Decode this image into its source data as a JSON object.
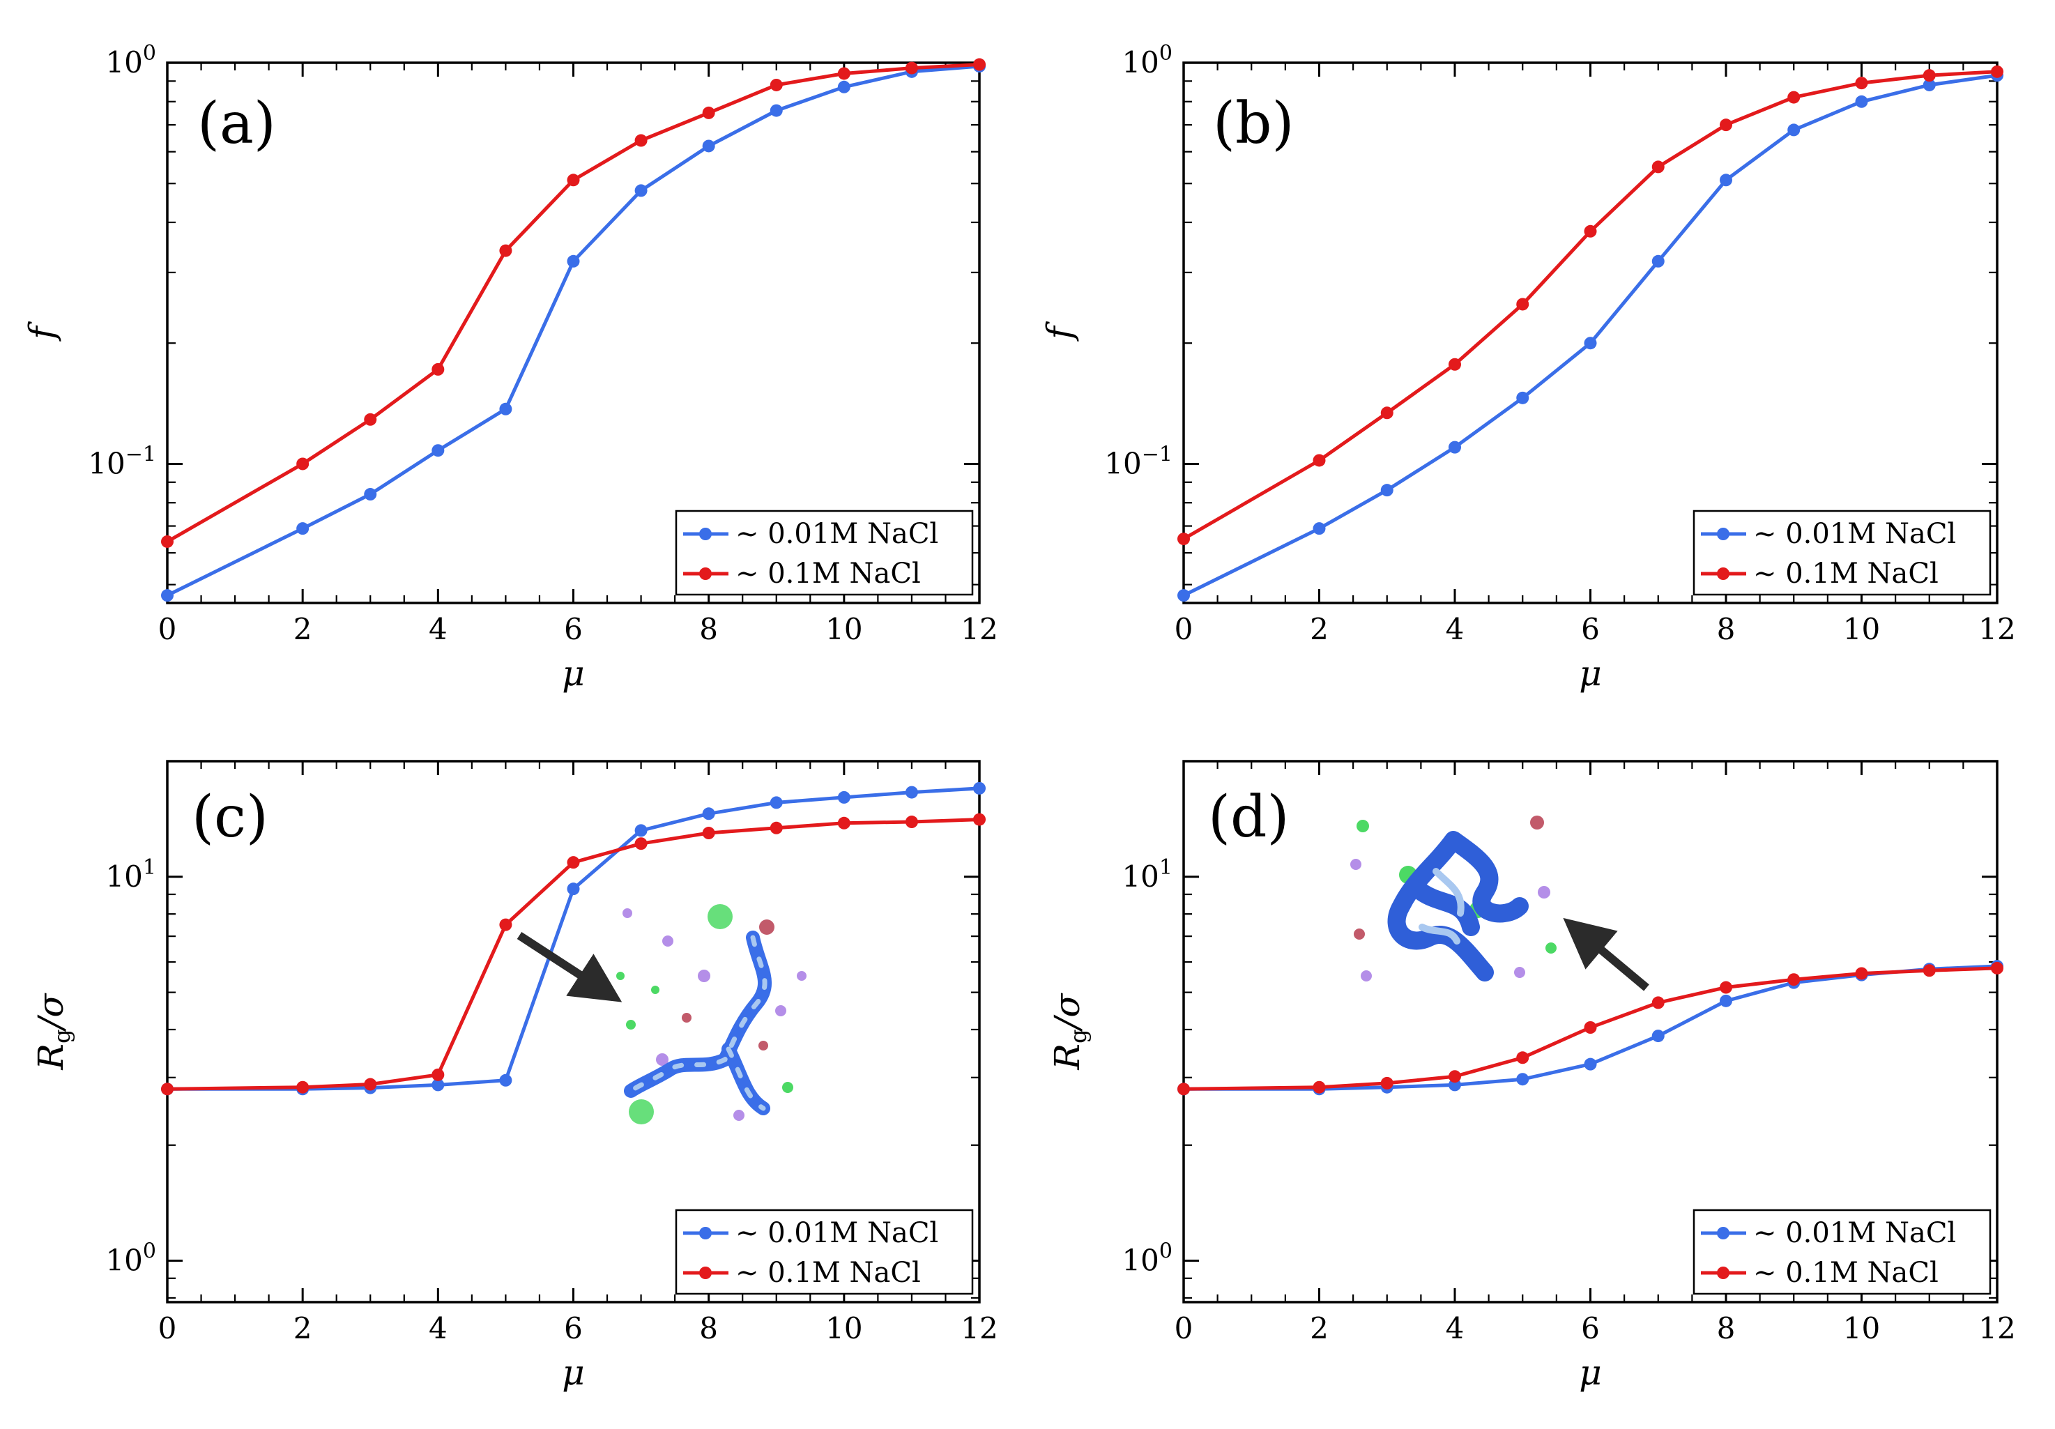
{
  "chart_data": [
    {
      "type": "line",
      "panel": "(a)",
      "xlabel": "μ",
      "ylabel": "f",
      "yscale": "log",
      "xlim": [
        0,
        12
      ],
      "ylim": [
        0.045,
        1.0
      ],
      "x_ticks": [
        "0",
        "2",
        "4",
        "6",
        "8",
        "10",
        "12"
      ],
      "y_ticks": [
        {
          "value": 0.1,
          "base": "10",
          "exp": "−1"
        },
        {
          "value": 1.0,
          "base": "10",
          "exp": "0"
        }
      ],
      "legend_position": "lower-right",
      "x": [
        0,
        2,
        3,
        4,
        5,
        6,
        7,
        8,
        9,
        10,
        11,
        12
      ],
      "series": [
        {
          "name": "∼ 0.01M NaCl",
          "color": "#3a6ee8",
          "values": [
            0.047,
            0.069,
            0.084,
            0.108,
            0.137,
            0.32,
            0.48,
            0.62,
            0.76,
            0.87,
            0.95,
            0.98
          ]
        },
        {
          "name": "∼  0.1M NaCl",
          "color": "#e31a1c",
          "values": [
            0.064,
            0.1,
            0.129,
            0.172,
            0.34,
            0.51,
            0.64,
            0.75,
            0.88,
            0.94,
            0.97,
            0.99
          ]
        }
      ]
    },
    {
      "type": "line",
      "panel": "(b)",
      "xlabel": "μ",
      "ylabel": "f",
      "yscale": "log",
      "xlim": [
        0,
        12
      ],
      "ylim": [
        0.045,
        1.0
      ],
      "x_ticks": [
        "0",
        "2",
        "4",
        "6",
        "8",
        "10",
        "12"
      ],
      "y_ticks": [
        {
          "value": 0.1,
          "base": "10",
          "exp": "−1"
        },
        {
          "value": 1.0,
          "base": "10",
          "exp": "0"
        }
      ],
      "legend_position": "lower-right",
      "x": [
        0,
        2,
        3,
        4,
        5,
        6,
        7,
        8,
        9,
        10,
        11,
        12
      ],
      "series": [
        {
          "name": "∼ 0.01M NaCl",
          "color": "#3a6ee8",
          "values": [
            0.047,
            0.069,
            0.086,
            0.11,
            0.146,
            0.2,
            0.32,
            0.51,
            0.68,
            0.8,
            0.88,
            0.93
          ]
        },
        {
          "name": "∼  0.1M NaCl",
          "color": "#e31a1c",
          "values": [
            0.065,
            0.102,
            0.134,
            0.177,
            0.25,
            0.38,
            0.55,
            0.7,
            0.82,
            0.89,
            0.93,
            0.95
          ]
        }
      ]
    },
    {
      "type": "line",
      "panel": "(c)",
      "xlabel": "μ",
      "ylabel": "Rg/σ",
      "yscale": "log",
      "xlim": [
        0,
        12
      ],
      "ylim": [
        0.78,
        20.0
      ],
      "x_ticks": [
        "0",
        "2",
        "4",
        "6",
        "8",
        "10",
        "12"
      ],
      "y_ticks": [
        {
          "value": 1.0,
          "base": "10",
          "exp": "0"
        },
        {
          "value": 10.0,
          "base": "10",
          "exp": "1"
        }
      ],
      "legend_position": "lower-right",
      "annotation": "arrow pointing to inset snapshot of an extended polyelectrolyte chain with ions",
      "x": [
        0,
        2,
        3,
        4,
        5,
        6,
        7,
        8,
        9,
        10,
        11,
        12
      ],
      "series": [
        {
          "name": "∼ 0.01M NaCl",
          "color": "#3a6ee8",
          "values": [
            2.8,
            2.8,
            2.82,
            2.87,
            2.95,
            9.3,
            13.2,
            14.6,
            15.6,
            16.1,
            16.6,
            17.0
          ]
        },
        {
          "name": "∼  0.1M NaCl",
          "color": "#e31a1c",
          "values": [
            2.8,
            2.83,
            2.88,
            3.05,
            7.5,
            10.9,
            12.2,
            13.0,
            13.4,
            13.8,
            13.9,
            14.1
          ]
        }
      ]
    },
    {
      "type": "line",
      "panel": "(d)",
      "xlabel": "μ",
      "ylabel": "Rg/σ",
      "yscale": "log",
      "xlim": [
        0,
        12
      ],
      "ylim": [
        0.78,
        20.0
      ],
      "x_ticks": [
        "0",
        "2",
        "4",
        "6",
        "8",
        "10",
        "12"
      ],
      "y_ticks": [
        {
          "value": 1.0,
          "base": "10",
          "exp": "0"
        },
        {
          "value": 10.0,
          "base": "10",
          "exp": "1"
        }
      ],
      "legend_position": "lower-right",
      "annotation": "arrow pointing to inset snapshot of a collapsed polyelectrolyte globule with ions",
      "x": [
        0,
        2,
        3,
        4,
        5,
        6,
        7,
        8,
        9,
        10,
        11,
        12
      ],
      "series": [
        {
          "name": "∼ 0.01M NaCl",
          "color": "#3a6ee8",
          "values": [
            2.8,
            2.8,
            2.83,
            2.87,
            2.97,
            3.25,
            3.85,
            4.75,
            5.3,
            5.55,
            5.75,
            5.85
          ]
        },
        {
          "name": "∼  0.1M NaCl",
          "color": "#e31a1c",
          "values": [
            2.8,
            2.83,
            2.9,
            3.02,
            3.38,
            4.05,
            4.7,
            5.15,
            5.4,
            5.6,
            5.7,
            5.78
          ]
        }
      ]
    }
  ]
}
